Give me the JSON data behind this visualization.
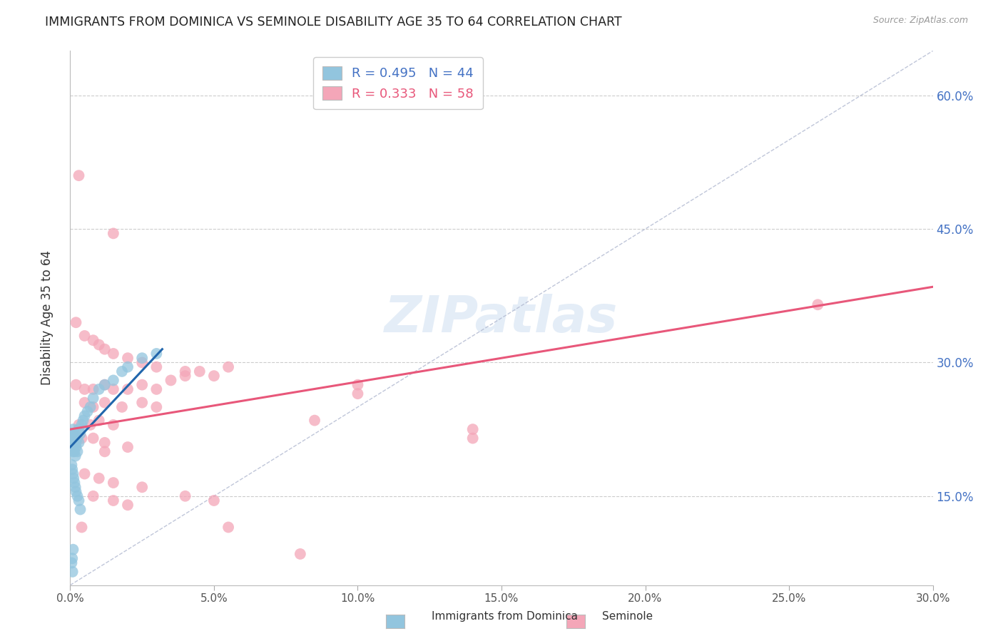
{
  "title": "IMMIGRANTS FROM DOMINICA VS SEMINOLE DISABILITY AGE 35 TO 64 CORRELATION CHART",
  "source": "Source: ZipAtlas.com",
  "xlabel_ticks": [
    "0.0%",
    "5.0%",
    "10.0%",
    "15.0%",
    "20.0%",
    "25.0%",
    "30.0%"
  ],
  "xlabel_vals": [
    0.0,
    5.0,
    10.0,
    15.0,
    20.0,
    25.0,
    30.0
  ],
  "ylabel_ticks": [
    "15.0%",
    "30.0%",
    "45.0%",
    "60.0%"
  ],
  "ylabel_vals": [
    15.0,
    30.0,
    45.0,
    60.0
  ],
  "xmin": 0.0,
  "xmax": 30.0,
  "ymin": 5.0,
  "ymax": 65.0,
  "legend_blue_R": "0.495",
  "legend_blue_N": "44",
  "legend_pink_R": "0.333",
  "legend_pink_N": "58",
  "legend_label_blue": "Immigrants from Dominica",
  "legend_label_pink": "Seminole",
  "watermark": "ZIPatlas",
  "blue_color": "#92c5de",
  "pink_color": "#f4a6b8",
  "blue_line_color": "#2166ac",
  "pink_line_color": "#e8577a",
  "blue_line": [
    [
      0.0,
      20.5
    ],
    [
      3.2,
      31.5
    ]
  ],
  "pink_line": [
    [
      0.0,
      22.5
    ],
    [
      30.0,
      38.5
    ]
  ],
  "diag_line": [
    [
      0.0,
      5.0
    ],
    [
      30.0,
      65.0
    ]
  ],
  "blue_dots": [
    [
      0.05,
      21.5
    ],
    [
      0.05,
      22.0
    ],
    [
      0.07,
      20.5
    ],
    [
      0.08,
      21.0
    ],
    [
      0.1,
      20.0
    ],
    [
      0.1,
      22.5
    ],
    [
      0.12,
      21.5
    ],
    [
      0.15,
      22.0
    ],
    [
      0.15,
      20.0
    ],
    [
      0.18,
      19.5
    ],
    [
      0.2,
      21.0
    ],
    [
      0.2,
      20.5
    ],
    [
      0.25,
      21.5
    ],
    [
      0.25,
      20.0
    ],
    [
      0.3,
      21.0
    ],
    [
      0.3,
      22.5
    ],
    [
      0.35,
      22.0
    ],
    [
      0.4,
      23.0
    ],
    [
      0.45,
      23.5
    ],
    [
      0.5,
      24.0
    ],
    [
      0.6,
      24.5
    ],
    [
      0.7,
      25.0
    ],
    [
      0.8,
      26.0
    ],
    [
      1.0,
      27.0
    ],
    [
      1.2,
      27.5
    ],
    [
      1.5,
      28.0
    ],
    [
      1.8,
      29.0
    ],
    [
      2.0,
      29.5
    ],
    [
      2.5,
      30.5
    ],
    [
      3.0,
      31.0
    ],
    [
      0.05,
      18.5
    ],
    [
      0.07,
      18.0
    ],
    [
      0.1,
      17.5
    ],
    [
      0.12,
      17.0
    ],
    [
      0.15,
      16.5
    ],
    [
      0.18,
      16.0
    ],
    [
      0.2,
      15.5
    ],
    [
      0.25,
      15.0
    ],
    [
      0.3,
      14.5
    ],
    [
      0.35,
      13.5
    ],
    [
      0.05,
      7.5
    ],
    [
      0.07,
      8.0
    ],
    [
      0.1,
      9.0
    ],
    [
      0.08,
      6.5
    ]
  ],
  "pink_dots": [
    [
      0.3,
      51.0
    ],
    [
      1.5,
      44.5
    ],
    [
      0.2,
      34.5
    ],
    [
      0.5,
      33.0
    ],
    [
      0.8,
      32.5
    ],
    [
      1.0,
      32.0
    ],
    [
      1.2,
      31.5
    ],
    [
      1.5,
      31.0
    ],
    [
      2.0,
      30.5
    ],
    [
      2.5,
      30.0
    ],
    [
      3.0,
      29.5
    ],
    [
      4.0,
      29.0
    ],
    [
      5.0,
      28.5
    ],
    [
      0.2,
      27.5
    ],
    [
      0.5,
      27.0
    ],
    [
      0.8,
      27.0
    ],
    [
      1.2,
      27.5
    ],
    [
      1.5,
      27.0
    ],
    [
      2.0,
      27.0
    ],
    [
      2.5,
      27.5
    ],
    [
      3.0,
      27.0
    ],
    [
      3.5,
      28.0
    ],
    [
      4.0,
      28.5
    ],
    [
      4.5,
      29.0
    ],
    [
      5.5,
      29.5
    ],
    [
      0.5,
      25.5
    ],
    [
      0.8,
      25.0
    ],
    [
      1.2,
      25.5
    ],
    [
      1.8,
      25.0
    ],
    [
      2.5,
      25.5
    ],
    [
      3.0,
      25.0
    ],
    [
      0.3,
      23.0
    ],
    [
      0.7,
      23.0
    ],
    [
      1.0,
      23.5
    ],
    [
      1.5,
      23.0
    ],
    [
      0.4,
      21.5
    ],
    [
      0.8,
      21.5
    ],
    [
      1.2,
      21.0
    ],
    [
      0.5,
      17.5
    ],
    [
      1.0,
      17.0
    ],
    [
      1.5,
      16.5
    ],
    [
      2.5,
      16.0
    ],
    [
      0.8,
      15.0
    ],
    [
      1.5,
      14.5
    ],
    [
      2.0,
      14.0
    ],
    [
      4.0,
      15.0
    ],
    [
      5.0,
      14.5
    ],
    [
      1.2,
      20.0
    ],
    [
      2.0,
      20.5
    ],
    [
      0.4,
      11.5
    ],
    [
      14.0,
      22.5
    ],
    [
      14.0,
      21.5
    ],
    [
      8.5,
      23.5
    ],
    [
      26.0,
      36.5
    ],
    [
      10.0,
      27.5
    ],
    [
      10.0,
      26.5
    ],
    [
      8.0,
      8.5
    ],
    [
      5.5,
      11.5
    ]
  ]
}
